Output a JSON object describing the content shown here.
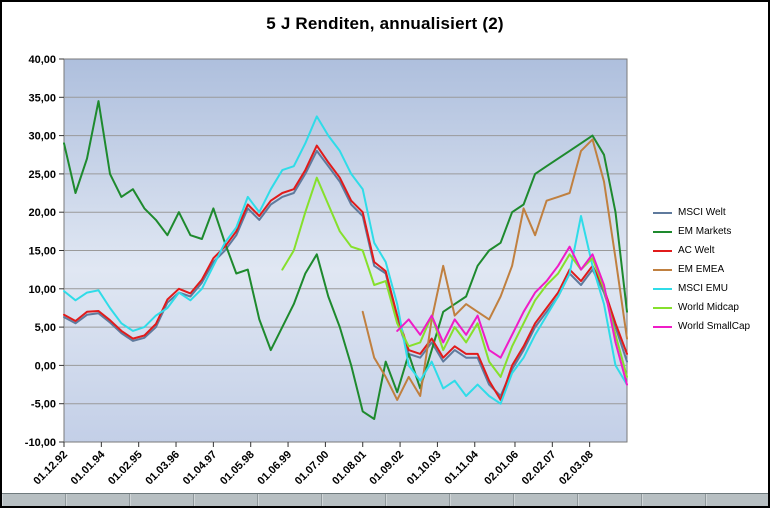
{
  "colors": {
    "plot_bg_top": "#aebfdd",
    "plot_bg_mid": "#e0e7f3",
    "plot_bg_bottom": "#c3cfe7",
    "gridline": "#9a9a9a",
    "plot_border": "#7a7a7a",
    "axis_text": "#000000",
    "frame_border": "#000000",
    "sheet_strip": "#b7bfc2"
  },
  "chart_data": {
    "type": "line",
    "title": "5 J Renditen, annualisiert (2)",
    "xlabel": "",
    "ylabel": "",
    "grid": "horizontal",
    "legend_position": "right",
    "ylim": [
      -10,
      40
    ],
    "xlim_months": [
      0,
      196
    ],
    "y_tick_values": [
      40,
      35,
      30,
      25,
      20,
      15,
      10,
      5,
      0,
      -5,
      -10
    ],
    "y_tick_labels": [
      "40,00",
      "35,00",
      "30,00",
      "25,00",
      "20,00",
      "15,00",
      "10,00",
      "5,00",
      "0,00",
      "-5,00",
      "-10,00"
    ],
    "x_tick_months": [
      0,
      13,
      26,
      39,
      52,
      65,
      78,
      91,
      104,
      117,
      130,
      143,
      157,
      170,
      183
    ],
    "x_tick_labels": [
      "01.12.92",
      "01.01.94",
      "01.02.95",
      "01.03.96",
      "01.04.97",
      "01.05.98",
      "01.06.99",
      "01.07.00",
      "01.08.01",
      "01.09.02",
      "01.10.03",
      "01.11.04",
      "02.01.06",
      "02.02.07",
      "02.03.08"
    ],
    "x_months": [
      0,
      4,
      8,
      12,
      16,
      20,
      24,
      28,
      32,
      36,
      40,
      44,
      48,
      52,
      56,
      60,
      64,
      68,
      72,
      76,
      80,
      84,
      88,
      92,
      96,
      100,
      104,
      108,
      112,
      116,
      120,
      124,
      128,
      132,
      136,
      140,
      144,
      148,
      152,
      156,
      160,
      164,
      168,
      172,
      176,
      180,
      184,
      188,
      192,
      196
    ],
    "series": [
      {
        "name": "MSCI Welt",
        "color": "#5f7a9d",
        "values": [
          6.3,
          5.5,
          6.6,
          6.8,
          5.6,
          4.2,
          3.2,
          3.6,
          5.0,
          8.2,
          9.5,
          9.0,
          10.8,
          13.5,
          15.0,
          17.0,
          20.5,
          19.0,
          21.0,
          22.0,
          22.5,
          25.0,
          28.0,
          26.0,
          24.0,
          21.0,
          19.5,
          13.0,
          12.0,
          6.0,
          1.5,
          1.0,
          3.0,
          0.5,
          2.0,
          1.0,
          1.0,
          -2.5,
          -4.0,
          -0.5,
          2.0,
          5.0,
          7.0,
          9.0,
          12.0,
          10.5,
          12.5,
          9.5,
          5.0,
          0.5
        ]
      },
      {
        "name": "EM Markets",
        "color": "#1e8a2e",
        "values": [
          29.0,
          22.5,
          27.0,
          34.5,
          25.0,
          22.0,
          23.0,
          20.5,
          19.0,
          17.0,
          20.0,
          17.0,
          16.5,
          20.5,
          16.0,
          12.0,
          12.5,
          6.0,
          2.0,
          5.0,
          8.0,
          12.0,
          14.5,
          9.0,
          5.0,
          0.0,
          -6.0,
          -7.0,
          0.5,
          -3.5,
          1.5,
          -3.0,
          2.0,
          7.0,
          8.0,
          9.0,
          13.0,
          15.0,
          16.0,
          20.0,
          21.0,
          25.0,
          26.0,
          27.0,
          28.0,
          29.0,
          30.0,
          27.5,
          20.0,
          7.0
        ]
      },
      {
        "name": "AC Welt",
        "color": "#e11b1b",
        "values": [
          6.6,
          5.8,
          7.0,
          7.1,
          5.9,
          4.5,
          3.5,
          3.9,
          5.4,
          8.6,
          10.0,
          9.4,
          11.2,
          14.0,
          15.5,
          17.5,
          21.0,
          19.5,
          21.5,
          22.5,
          23.0,
          25.5,
          28.7,
          26.5,
          24.5,
          21.5,
          20.0,
          13.5,
          12.3,
          6.5,
          2.0,
          1.5,
          3.5,
          1.0,
          2.5,
          1.5,
          1.5,
          -2.0,
          -4.5,
          0.0,
          2.5,
          5.5,
          7.5,
          9.5,
          12.5,
          11.0,
          13.0,
          10.0,
          5.5,
          1.5
        ]
      },
      {
        "name": "EM EMEA",
        "color": "#c08040",
        "values": [
          null,
          null,
          null,
          null,
          null,
          null,
          null,
          null,
          null,
          null,
          null,
          null,
          null,
          null,
          null,
          null,
          null,
          null,
          null,
          null,
          null,
          null,
          null,
          null,
          null,
          null,
          7.0,
          1.0,
          -1.5,
          -4.5,
          -1.5,
          -4.0,
          6.0,
          13.0,
          6.5,
          8.0,
          7.0,
          6.0,
          9.0,
          13.0,
          20.5,
          17.0,
          21.5,
          22.0,
          22.5,
          28.0,
          29.5,
          24.0,
          14.0,
          3.5
        ]
      },
      {
        "name": "MSCI EMU",
        "color": "#2fdce8",
        "values": [
          9.7,
          8.5,
          9.5,
          9.8,
          7.5,
          5.5,
          4.5,
          5.0,
          6.5,
          7.5,
          9.5,
          8.5,
          10.0,
          13.0,
          16.0,
          18.0,
          22.0,
          20.0,
          23.0,
          25.5,
          26.0,
          29.0,
          32.5,
          30.0,
          28.0,
          25.0,
          23.0,
          16.0,
          13.5,
          8.0,
          0.0,
          -2.0,
          0.5,
          -3.0,
          -2.0,
          -4.0,
          -2.5,
          -4.0,
          -5.0,
          -1.0,
          1.0,
          4.0,
          6.5,
          9.0,
          12.0,
          19.5,
          13.0,
          8.0,
          0.0,
          -2.5
        ]
      },
      {
        "name": "World Midcap",
        "color": "#86e02c",
        "values": [
          null,
          null,
          null,
          null,
          null,
          null,
          null,
          null,
          null,
          null,
          null,
          null,
          null,
          null,
          null,
          null,
          null,
          null,
          null,
          12.5,
          15.0,
          20.0,
          24.5,
          21.0,
          17.5,
          15.5,
          15.0,
          10.5,
          11.0,
          5.5,
          2.5,
          3.0,
          6.5,
          2.0,
          5.0,
          3.0,
          5.5,
          0.5,
          -1.5,
          2.5,
          5.5,
          8.5,
          10.5,
          12.0,
          14.5,
          12.5,
          14.0,
          10.0,
          4.0,
          -1.5
        ]
      },
      {
        "name": "World SmallCap",
        "color": "#ef1cc7",
        "values": [
          null,
          null,
          null,
          null,
          null,
          null,
          null,
          null,
          null,
          null,
          null,
          null,
          null,
          null,
          null,
          null,
          null,
          null,
          null,
          null,
          null,
          null,
          null,
          null,
          null,
          null,
          null,
          null,
          null,
          4.5,
          6.0,
          4.0,
          6.5,
          3.0,
          6.0,
          4.0,
          6.5,
          2.0,
          1.0,
          4.0,
          7.0,
          9.5,
          11.0,
          13.0,
          15.5,
          12.5,
          14.5,
          10.5,
          3.0,
          -2.5
        ]
      }
    ]
  }
}
